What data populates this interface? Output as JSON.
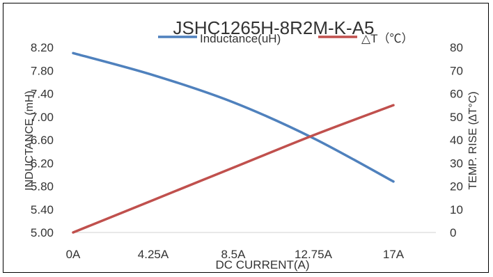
{
  "chart_data": {
    "type": "line",
    "title": "JSHC1265H-8R2M-K-A5",
    "xlabel": "DC CURRENT(A)",
    "ylabel_left": "INDUCTANCE (mH)",
    "ylabel_right": "TEMP. RISE (∆T°C)",
    "categories": [
      "0A",
      "4.25A",
      "8.5A",
      "12.75A",
      "17A"
    ],
    "x": [
      0,
      4.25,
      8.5,
      12.75,
      17
    ],
    "ylim_left": [
      5.0,
      8.2
    ],
    "yticks_left": [
      "5.00",
      "5.40",
      "5.80",
      "6.20",
      "6.60",
      "7.00",
      "7.40",
      "7.80",
      "8.20"
    ],
    "ylim_right": [
      0,
      80
    ],
    "yticks_right": [
      "0",
      "10",
      "20",
      "30",
      "40",
      "50",
      "60",
      "70",
      "80"
    ],
    "grid": false,
    "legend_position": "top",
    "series": [
      {
        "name": "Inductance(uH)",
        "axis": "left",
        "color": "#4f81bd",
        "values": [
          8.1,
          7.72,
          7.25,
          6.63,
          5.88
        ]
      },
      {
        "name": "△T（℃）",
        "axis": "right",
        "color": "#c0504d",
        "values": [
          0,
          14,
          28,
          42,
          55
        ]
      }
    ]
  }
}
